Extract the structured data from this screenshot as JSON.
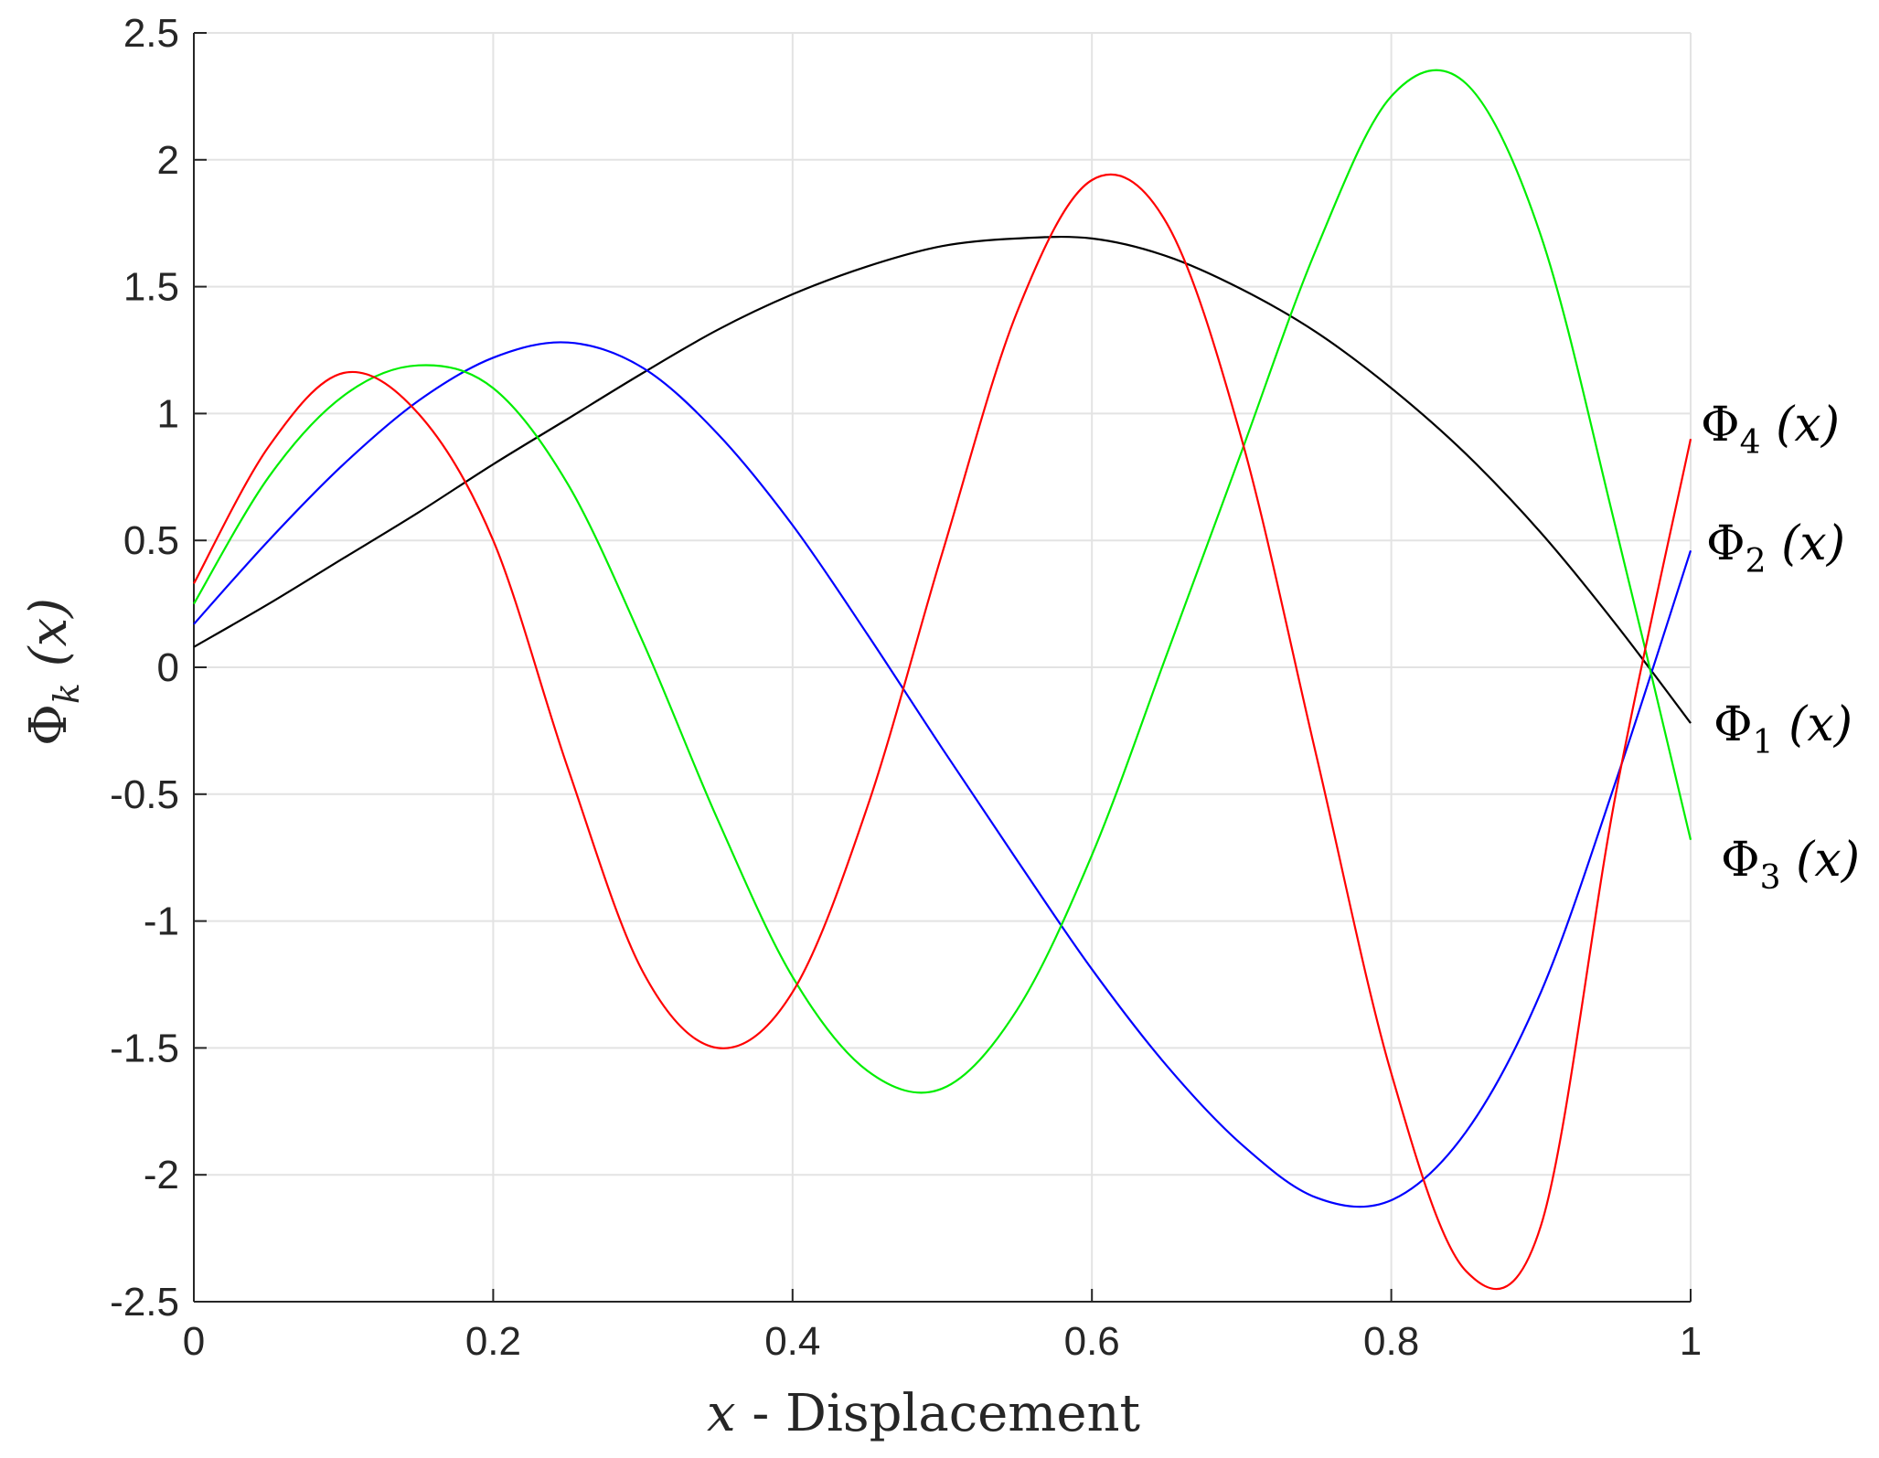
{
  "chart_data": {
    "type": "line",
    "xlabel": "x - Displacement",
    "ylabel": "Φk (x)",
    "xlim": [
      0,
      1
    ],
    "ylim": [
      -2.5,
      2.5
    ],
    "grid": true,
    "x_ticks": [
      "0",
      "0.2",
      "0.4",
      "0.6",
      "0.8",
      "1"
    ],
    "y_ticks": [
      "2.5",
      "2",
      "1.5",
      "1",
      "0.5",
      "0",
      "-0.5",
      "-1",
      "-1.5",
      "-2",
      "-2.5"
    ],
    "x": [
      0,
      0.05,
      0.1,
      0.15,
      0.2,
      0.25,
      0.3,
      0.35,
      0.4,
      0.45,
      0.5,
      0.55,
      0.6,
      0.65,
      0.7,
      0.75,
      0.8,
      0.85,
      0.9,
      0.95,
      1.0
    ],
    "series": [
      {
        "name": "Φ1 (x)",
        "color": "#000000",
        "values": [
          0.08,
          0.25,
          0.43,
          0.61,
          0.8,
          0.98,
          1.16,
          1.33,
          1.47,
          1.58,
          1.66,
          1.69,
          1.69,
          1.62,
          1.49,
          1.32,
          1.1,
          0.84,
          0.53,
          0.17,
          -0.22
        ]
      },
      {
        "name": "Φ2 (x)",
        "color": "#0000ff",
        "values": [
          0.17,
          0.5,
          0.8,
          1.05,
          1.22,
          1.28,
          1.18,
          0.92,
          0.56,
          0.13,
          -0.32,
          -0.76,
          -1.19,
          -1.57,
          -1.88,
          -2.09,
          -2.1,
          -1.83,
          -1.28,
          -0.45,
          0.46
        ]
      },
      {
        "name": "Φ3 (x)",
        "color": "#00ee00",
        "values": [
          0.25,
          0.75,
          1.07,
          1.19,
          1.1,
          0.72,
          0.1,
          -0.6,
          -1.22,
          -1.59,
          -1.66,
          -1.35,
          -0.74,
          0.05,
          0.85,
          1.65,
          2.25,
          2.3,
          1.7,
          0.55,
          -0.68
        ]
      },
      {
        "name": "Φ4 (x)",
        "color": "#ff0000",
        "values": [
          0.33,
          0.87,
          1.16,
          1.0,
          0.5,
          -0.4,
          -1.2,
          -1.5,
          -1.28,
          -0.55,
          0.45,
          1.4,
          1.92,
          1.75,
          0.9,
          -0.35,
          -1.6,
          -2.38,
          -2.2,
          -0.5,
          0.9
        ]
      }
    ],
    "series_labels": [
      {
        "series": "Φ4 (x)",
        "symbol": "Φ",
        "sub": "4",
        "args": " (x)"
      },
      {
        "series": "Φ2 (x)",
        "symbol": "Φ",
        "sub": "2",
        "args": " (x)"
      },
      {
        "series": "Φ1 (x)",
        "symbol": "Φ",
        "sub": "1",
        "args": " (x)"
      },
      {
        "series": "Φ3 (x)",
        "symbol": "Φ",
        "sub": "3",
        "args": " (x)"
      }
    ]
  }
}
